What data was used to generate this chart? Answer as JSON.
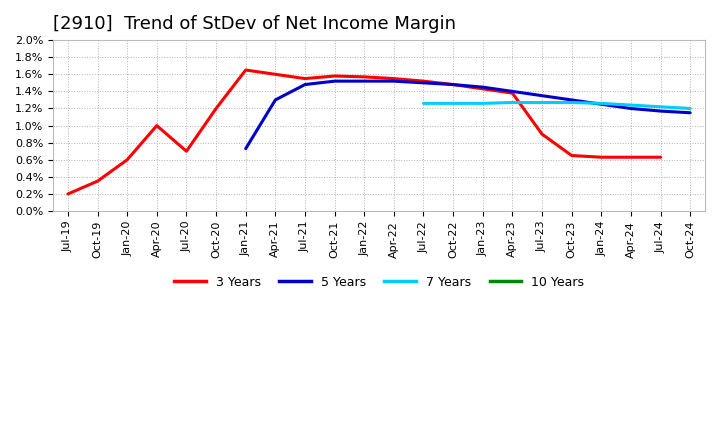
{
  "title": "[2910]  Trend of StDev of Net Income Margin",
  "background_color": "#ffffff",
  "plot_bg_color": "#ffffff",
  "grid_color": "#aaaaaa",
  "x_labels": [
    "Jul-19",
    "Oct-19",
    "Jan-20",
    "Apr-20",
    "Jul-20",
    "Oct-20",
    "Jan-21",
    "Apr-21",
    "Jul-21",
    "Oct-21",
    "Jan-22",
    "Apr-22",
    "Jul-22",
    "Oct-22",
    "Jan-23",
    "Apr-23",
    "Jul-23",
    "Oct-23",
    "Jan-24",
    "Apr-24",
    "Jul-24",
    "Oct-24"
  ],
  "series": {
    "3 Years": {
      "color": "#ff0000",
      "values": [
        0.002,
        0.0035,
        0.006,
        0.01,
        0.007,
        0.012,
        0.0165,
        0.016,
        0.0155,
        0.0158,
        0.0157,
        0.0155,
        0.0152,
        0.0148,
        0.0143,
        0.0138,
        0.009,
        0.0065,
        0.0063,
        0.0063,
        0.0063,
        null
      ]
    },
    "5 Years": {
      "color": "#0000cc",
      "values": [
        null,
        null,
        null,
        null,
        null,
        null,
        0.0073,
        0.013,
        0.0148,
        0.0152,
        0.0152,
        0.0152,
        0.015,
        0.0148,
        0.0145,
        0.014,
        0.0135,
        0.013,
        0.0125,
        0.012,
        0.0117,
        0.0115
      ]
    },
    "7 Years": {
      "color": "#00ccff",
      "values": [
        null,
        null,
        null,
        null,
        null,
        null,
        null,
        null,
        null,
        null,
        null,
        null,
        0.0126,
        0.0126,
        0.0126,
        0.0127,
        0.0127,
        0.0127,
        0.0126,
        0.0124,
        0.0122,
        0.012
      ]
    },
    "10 Years": {
      "color": "#008800",
      "values": [
        null,
        null,
        null,
        null,
        null,
        null,
        null,
        null,
        null,
        null,
        null,
        null,
        null,
        null,
        null,
        null,
        null,
        null,
        null,
        null,
        null,
        null
      ]
    }
  },
  "ylim": [
    0.0,
    0.02
  ],
  "yticks": [
    0.0,
    0.002,
    0.004,
    0.006,
    0.008,
    0.01,
    0.012,
    0.014,
    0.016,
    0.018,
    0.02
  ],
  "ytick_labels": [
    "0.0%",
    "0.2%",
    "0.4%",
    "0.6%",
    "0.8%",
    "1.0%",
    "1.2%",
    "1.4%",
    "1.6%",
    "1.8%",
    "2.0%"
  ],
  "linewidth": 2.2,
  "title_fontsize": 13,
  "legend_fontsize": 9,
  "tick_fontsize": 8
}
